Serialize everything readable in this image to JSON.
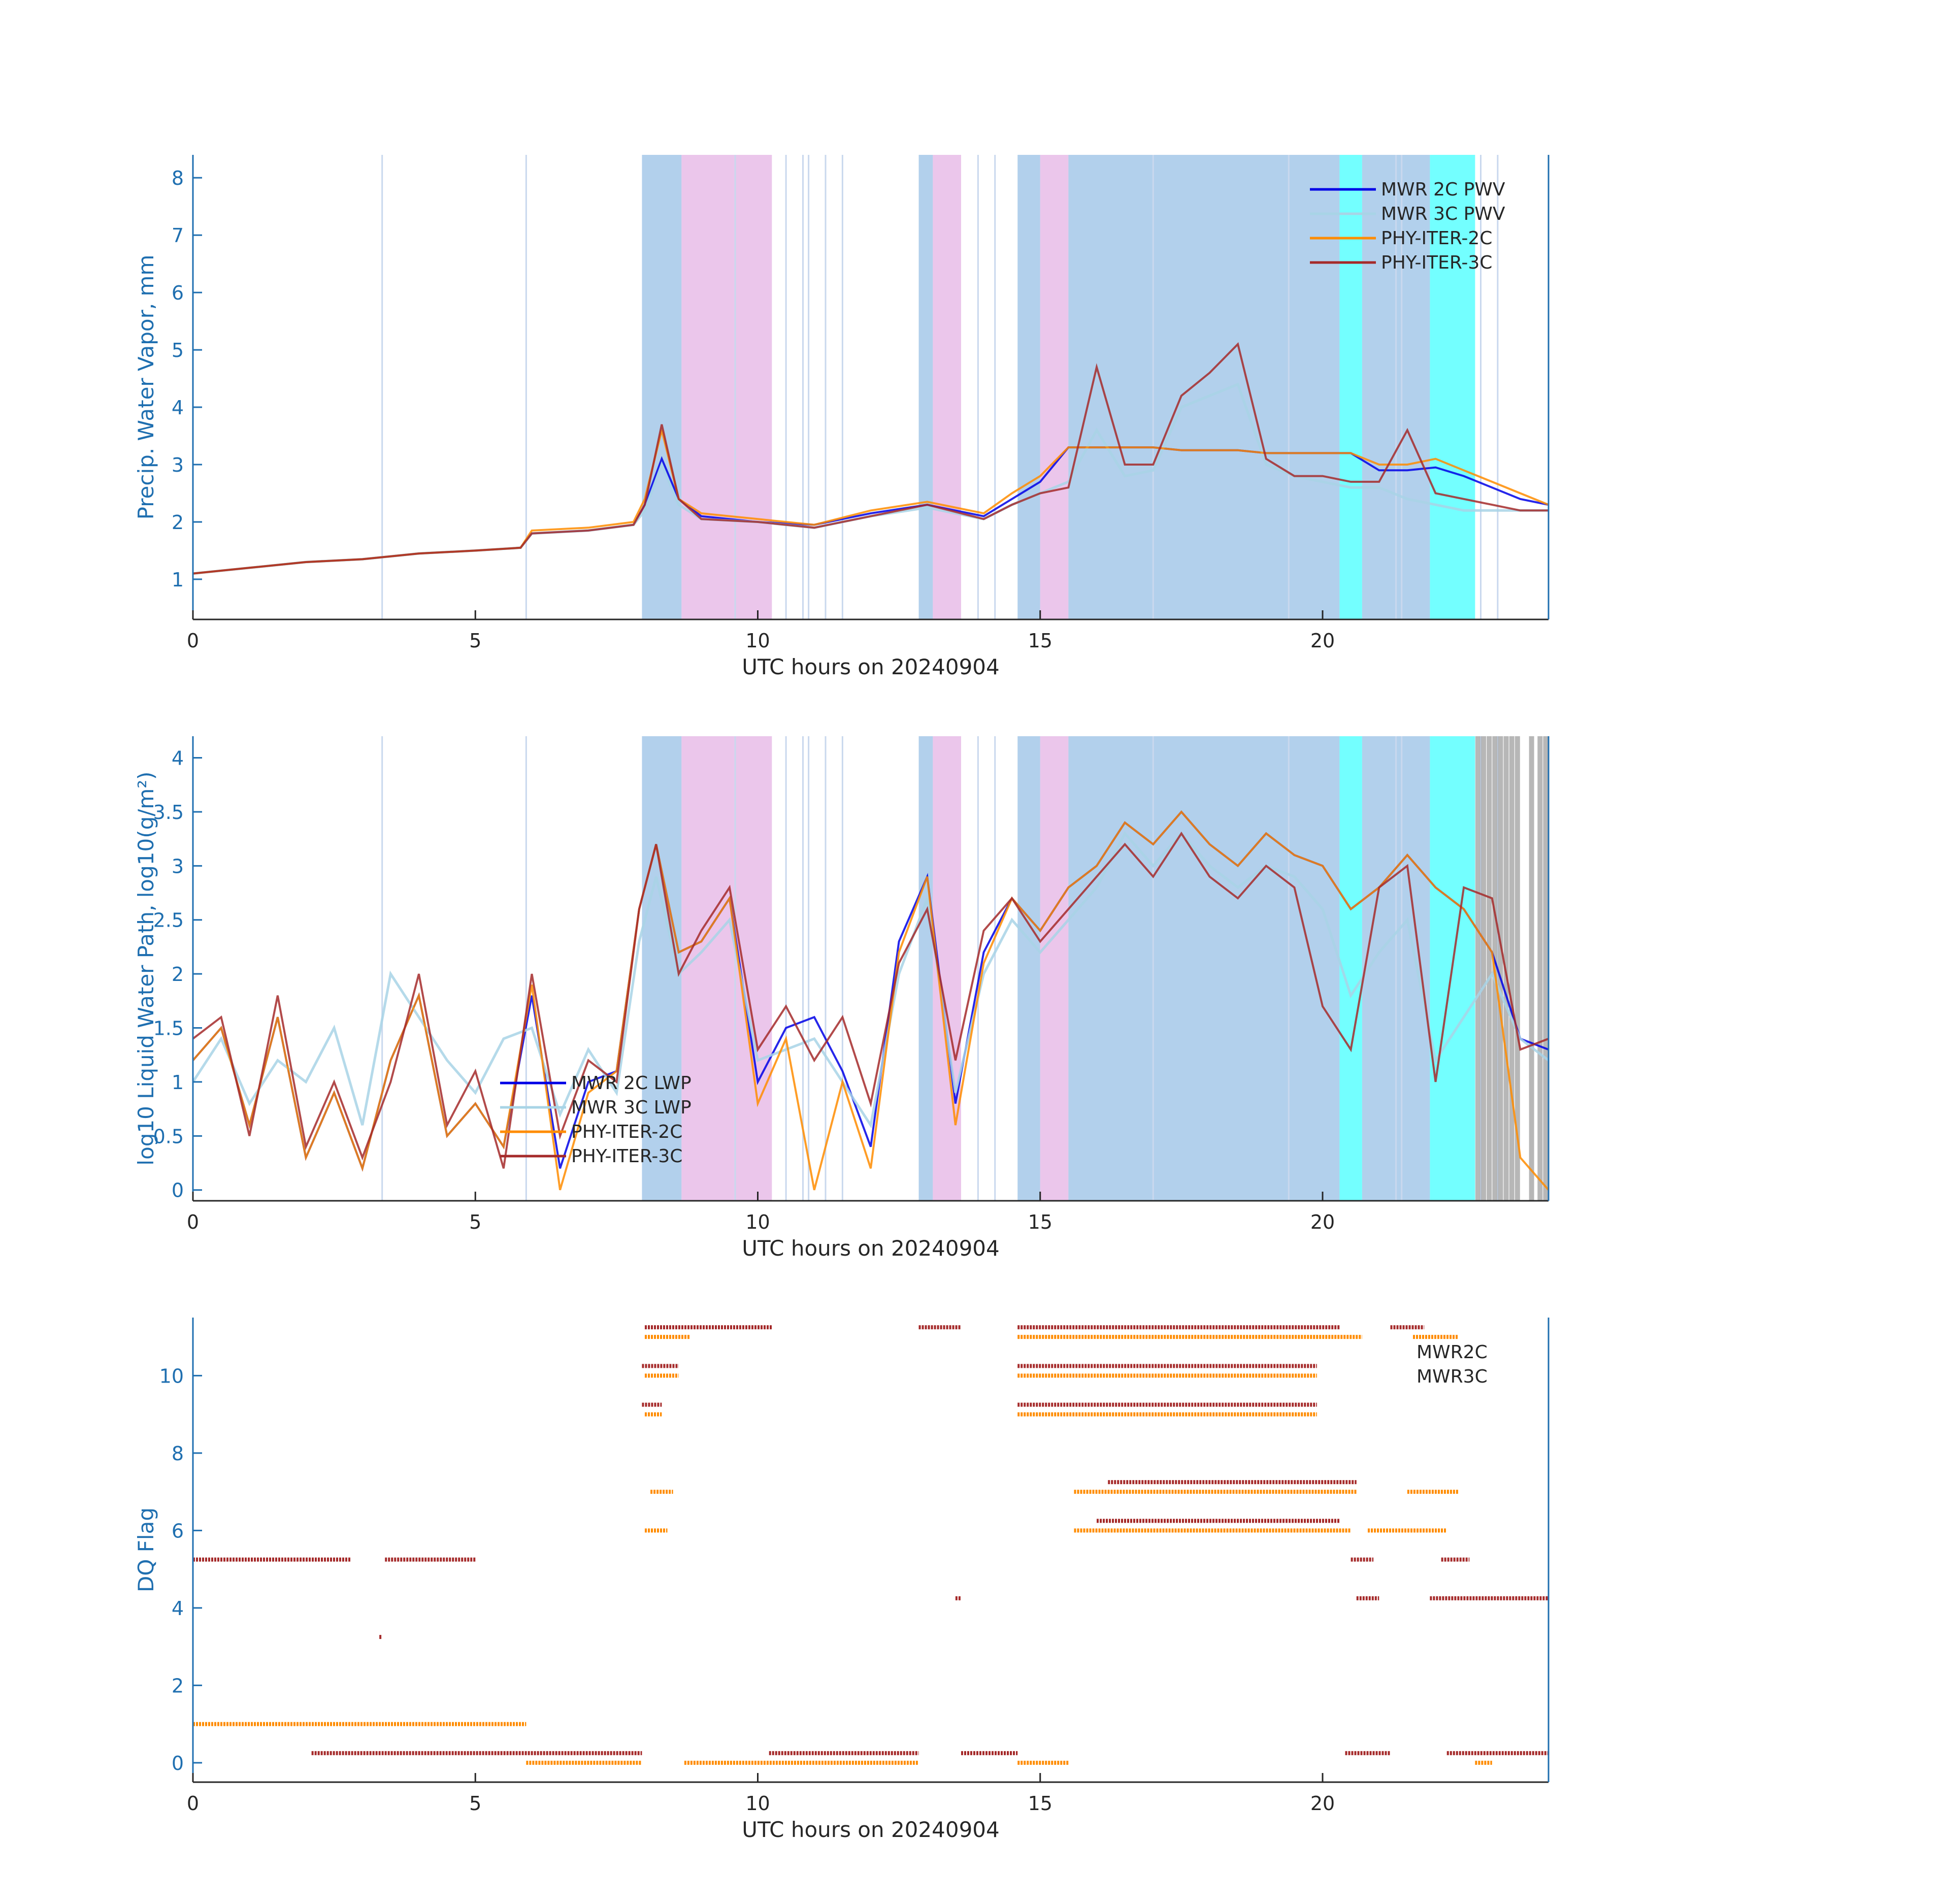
{
  "figure": {
    "xlabel": "UTC hours on 20240904"
  },
  "colors": {
    "mwr2c": "#0000e6",
    "mwr3c": "#a8d4e6",
    "phy2c": "#ff8c00",
    "phy3c": "#a52a2a",
    "shade_blue": "#7fb1e0",
    "shade_pink": "#dda0dd",
    "shade_cyan": "#00ffff",
    "shade_gray": "#999999",
    "shade_green": "#90ee90",
    "axis": "#1f6fb0"
  },
  "shading": {
    "bands": [
      {
        "x0": 7.95,
        "x1": 8.65,
        "color": "blue"
      },
      {
        "x0": 8.65,
        "x1": 10.25,
        "color": "pink"
      },
      {
        "x0": 12.85,
        "x1": 13.1,
        "color": "blue"
      },
      {
        "x0": 13.1,
        "x1": 13.6,
        "color": "pink"
      },
      {
        "x0": 14.6,
        "x1": 15.0,
        "color": "blue"
      },
      {
        "x0": 15.0,
        "x1": 15.5,
        "color": "pink"
      },
      {
        "x0": 15.5,
        "x1": 20.3,
        "color": "blue"
      },
      {
        "x0": 20.3,
        "x1": 20.7,
        "color": "cyan"
      },
      {
        "x0": 20.7,
        "x1": 21.9,
        "color": "blue"
      },
      {
        "x0": 21.9,
        "x1": 22.7,
        "color": "cyan"
      }
    ],
    "lines": [
      3.35,
      5.9,
      9.6,
      10.5,
      10.8,
      10.9,
      11.2,
      11.5,
      13.9,
      14.2,
      17.0,
      19.4,
      21.3,
      21.4,
      22.8,
      23.1
    ],
    "lwp_gray": [
      22.75,
      22.85,
      22.95,
      23.05,
      23.15,
      23.25,
      23.35,
      23.45,
      23.7,
      23.85,
      23.95
    ]
  },
  "chart_data": [
    {
      "type": "line",
      "id": "pwv",
      "ylabel": "Precip. Water Vapor, mm",
      "xlabel": "UTC hours on 20240904",
      "xlim": [
        0,
        24
      ],
      "ylim": [
        0.3,
        8.4
      ],
      "xticks": [
        "0",
        "5",
        "10",
        "15",
        "20"
      ],
      "yticks": [
        "1",
        "2",
        "3",
        "4",
        "5",
        "6",
        "7",
        "8"
      ],
      "legend": [
        "MWR 2C PWV",
        "MWR 3C PWV",
        "PHY-ITER-2C",
        "PHY-ITER-3C"
      ],
      "legend_position": "top-right",
      "x": [
        0,
        1,
        2,
        3,
        4,
        5,
        5.8,
        6,
        7,
        7.8,
        8.0,
        8.3,
        8.6,
        9,
        10,
        11,
        12,
        13,
        14,
        14.5,
        15,
        15.5,
        16,
        16.5,
        17,
        17.5,
        18,
        18.5,
        19,
        19.5,
        20,
        20.5,
        21,
        21.5,
        22,
        22.5,
        23,
        23.5,
        24
      ],
      "series": [
        {
          "name": "MWR 2C PWV",
          "values": [
            1.1,
            1.2,
            1.3,
            1.35,
            1.45,
            1.5,
            1.55,
            1.8,
            1.85,
            1.95,
            2.3,
            3.1,
            2.4,
            2.1,
            2.0,
            1.95,
            2.15,
            2.3,
            2.1,
            2.4,
            2.7,
            3.3,
            3.3,
            3.3,
            3.3,
            3.25,
            3.25,
            3.25,
            3.2,
            3.2,
            3.2,
            3.2,
            2.9,
            2.9,
            2.95,
            2.8,
            2.6,
            2.4,
            2.3
          ]
        },
        {
          "name": "MWR 3C PWV",
          "values": [
            1.1,
            1.2,
            1.3,
            1.35,
            1.45,
            1.5,
            1.55,
            1.8,
            1.85,
            1.95,
            2.2,
            3.0,
            2.3,
            2.05,
            2.0,
            1.9,
            2.1,
            2.25,
            2.05,
            2.3,
            2.5,
            2.7,
            3.6,
            2.8,
            2.9,
            4.0,
            4.2,
            4.4,
            3.0,
            2.8,
            2.7,
            2.6,
            2.6,
            2.4,
            2.3,
            2.2,
            2.2,
            2.2,
            2.2
          ]
        },
        {
          "name": "PHY-ITER-2C",
          "values": [
            1.1,
            1.2,
            1.3,
            1.35,
            1.45,
            1.5,
            1.55,
            1.85,
            1.9,
            2.0,
            2.4,
            3.6,
            2.4,
            2.15,
            2.05,
            1.95,
            2.2,
            2.35,
            2.15,
            2.5,
            2.8,
            3.3,
            3.3,
            3.3,
            3.3,
            3.25,
            3.25,
            3.25,
            3.2,
            3.2,
            3.2,
            3.2,
            3.0,
            3.0,
            3.1,
            2.9,
            2.7,
            2.5,
            2.3
          ]
        },
        {
          "name": "PHY-ITER-3C",
          "values": [
            1.1,
            1.2,
            1.3,
            1.35,
            1.45,
            1.5,
            1.55,
            1.8,
            1.85,
            1.95,
            2.3,
            3.7,
            2.4,
            2.05,
            2.0,
            1.9,
            2.1,
            2.3,
            2.05,
            2.3,
            2.5,
            2.6,
            4.7,
            3.0,
            3.0,
            4.2,
            4.6,
            5.1,
            3.1,
            2.8,
            2.8,
            2.7,
            2.7,
            3.6,
            2.5,
            2.4,
            2.3,
            2.2,
            2.2
          ]
        }
      ]
    },
    {
      "type": "line",
      "id": "lwp",
      "ylabel": "log10 Liquid Water Path, log10(g/m²)",
      "xlabel": "UTC hours on 20240904",
      "xlim": [
        0,
        24
      ],
      "ylim": [
        -0.1,
        4.2
      ],
      "xticks": [
        "0",
        "5",
        "10",
        "15",
        "20"
      ],
      "yticks": [
        "0",
        "0.5",
        "1",
        "1.5",
        "2",
        "2.5",
        "3",
        "3.5",
        "4"
      ],
      "legend": [
        "MWR 2C LWP",
        "MWR 3C LWP",
        "PHY-ITER-2C",
        "PHY-ITER-3C"
      ],
      "legend_position": "lower-left",
      "x": [
        0,
        0.5,
        1,
        1.5,
        2,
        2.5,
        3,
        3.5,
        4,
        4.5,
        5,
        5.5,
        6,
        6.5,
        7,
        7.5,
        7.9,
        8.2,
        8.6,
        9,
        9.5,
        10,
        10.5,
        11,
        11.5,
        12,
        12.5,
        13,
        13.5,
        14,
        14.5,
        15,
        15.5,
        16,
        16.5,
        17,
        17.5,
        18,
        18.5,
        19,
        19.5,
        20,
        20.5,
        21,
        21.5,
        22,
        22.5,
        23,
        23.5,
        24
      ],
      "series": [
        {
          "name": "MWR 2C LWP",
          "values": [
            1.2,
            1.5,
            0.6,
            1.6,
            0.3,
            0.9,
            0.2,
            1.2,
            1.8,
            0.5,
            0.8,
            0.4,
            1.8,
            0.2,
            1.0,
            1.1,
            2.6,
            3.2,
            2.2,
            2.3,
            2.7,
            1.0,
            1.5,
            1.6,
            1.1,
            0.4,
            2.3,
            2.9,
            0.8,
            2.2,
            2.7,
            2.4,
            2.8,
            3.0,
            3.4,
            3.2,
            3.5,
            3.2,
            3.0,
            3.3,
            3.1,
            3.0,
            2.6,
            2.8,
            3.1,
            2.8,
            2.6,
            2.2,
            1.4,
            1.3
          ]
        },
        {
          "name": "MWR 3C LWP",
          "values": [
            1.0,
            1.4,
            0.8,
            1.2,
            1.0,
            1.5,
            0.6,
            2.0,
            1.6,
            1.2,
            0.9,
            1.4,
            1.5,
            0.7,
            1.3,
            0.9,
            2.3,
            2.9,
            2.0,
            2.2,
            2.5,
            1.2,
            1.3,
            1.4,
            1.0,
            0.6,
            2.0,
            2.7,
            0.9,
            2.0,
            2.5,
            2.2,
            2.5,
            2.8,
            3.3,
            3.0,
            3.3,
            3.0,
            2.8,
            3.0,
            2.9,
            2.6,
            1.8,
            2.2,
            2.5,
            1.2,
            1.6,
            2.0,
            1.4,
            1.2
          ]
        },
        {
          "name": "PHY-ITER-2C",
          "values": [
            1.2,
            1.5,
            0.6,
            1.6,
            0.3,
            0.9,
            0.2,
            1.2,
            1.8,
            0.5,
            0.8,
            0.4,
            1.9,
            0.0,
            0.9,
            1.1,
            2.6,
            3.2,
            2.2,
            2.3,
            2.7,
            0.8,
            1.4,
            0.0,
            1.0,
            0.2,
            2.2,
            2.9,
            0.6,
            2.1,
            2.7,
            2.4,
            2.8,
            3.0,
            3.4,
            3.2,
            3.5,
            3.2,
            3.0,
            3.3,
            3.1,
            3.0,
            2.6,
            2.8,
            3.1,
            2.8,
            2.6,
            2.2,
            0.3,
            0.0
          ]
        },
        {
          "name": "PHY-ITER-3C",
          "values": [
            1.4,
            1.6,
            0.5,
            1.8,
            0.4,
            1.0,
            0.3,
            1.0,
            2.0,
            0.6,
            1.1,
            0.2,
            2.0,
            0.5,
            1.2,
            1.0,
            2.6,
            3.2,
            2.0,
            2.4,
            2.8,
            1.3,
            1.7,
            1.2,
            1.6,
            0.8,
            2.1,
            2.6,
            1.2,
            2.4,
            2.7,
            2.3,
            2.6,
            2.9,
            3.2,
            2.9,
            3.3,
            2.9,
            2.7,
            3.0,
            2.8,
            1.7,
            1.3,
            2.8,
            3.0,
            1.0,
            2.8,
            2.7,
            1.3,
            1.4
          ]
        }
      ]
    },
    {
      "type": "scatter",
      "id": "dq",
      "ylabel": "DQ Flag",
      "xlabel": "UTC hours on 20240904",
      "xlim": [
        0,
        24
      ],
      "ylim": [
        -0.5,
        11.5
      ],
      "xticks": [
        "0",
        "5",
        "10",
        "15",
        "20"
      ],
      "yticks": [
        "0",
        "2",
        "4",
        "6",
        "8",
        "10"
      ],
      "legend": [
        "MWR2C",
        "MWR3C"
      ],
      "legend_position": "top-right",
      "series": [
        {
          "name": "MWR2C",
          "segments": [
            {
              "y": 1,
              "x0": 0,
              "x1": 5.9
            },
            {
              "y": 0,
              "x0": 5.9,
              "x1": 7.95
            },
            {
              "y": 0,
              "x0": 8.7,
              "x1": 12.85
            },
            {
              "y": 0,
              "x0": 14.6,
              "x1": 15.5
            },
            {
              "y": 0,
              "x0": 22.7,
              "x1": 23.0
            },
            {
              "y": 6,
              "x0": 8.0,
              "x1": 8.4
            },
            {
              "y": 6,
              "x0": 15.6,
              "x1": 20.5
            },
            {
              "y": 6,
              "x0": 20.8,
              "x1": 22.2
            },
            {
              "y": 7,
              "x0": 8.1,
              "x1": 8.5
            },
            {
              "y": 7,
              "x0": 15.6,
              "x1": 20.6
            },
            {
              "y": 7,
              "x0": 21.5,
              "x1": 22.4
            },
            {
              "y": 9,
              "x0": 8.0,
              "x1": 8.3
            },
            {
              "y": 9,
              "x0": 14.6,
              "x1": 19.9
            },
            {
              "y": 10,
              "x0": 8.0,
              "x1": 8.6
            },
            {
              "y": 10,
              "x0": 14.6,
              "x1": 19.9
            },
            {
              "y": 11,
              "x0": 8.0,
              "x1": 8.8
            },
            {
              "y": 11,
              "x0": 14.6,
              "x1": 20.7
            },
            {
              "y": 11,
              "x0": 21.6,
              "x1": 22.4
            }
          ]
        },
        {
          "name": "MWR3C",
          "segments": [
            {
              "y": 5,
              "x0": 0,
              "x1": 2.8
            },
            {
              "y": 5,
              "x0": 3.4,
              "x1": 5.0
            },
            {
              "y": 3,
              "x0": 3.3,
              "x1": 3.35
            },
            {
              "y": 0,
              "x0": 2.1,
              "x1": 7.95
            },
            {
              "y": 0,
              "x0": 10.2,
              "x1": 12.85
            },
            {
              "y": 0,
              "x0": 13.6,
              "x1": 14.6
            },
            {
              "y": 0,
              "x0": 20.4,
              "x1": 21.2
            },
            {
              "y": 0,
              "x0": 22.2,
              "x1": 24
            },
            {
              "y": 4,
              "x0": 13.5,
              "x1": 13.6
            },
            {
              "y": 4,
              "x0": 20.6,
              "x1": 21.0
            },
            {
              "y": 4,
              "x0": 21.9,
              "x1": 24
            },
            {
              "y": 5,
              "x0": 20.5,
              "x1": 20.9
            },
            {
              "y": 5,
              "x0": 22.1,
              "x1": 22.6
            },
            {
              "y": 6,
              "x0": 16.0,
              "x1": 20.3
            },
            {
              "y": 7,
              "x0": 16.2,
              "x1": 20.6
            },
            {
              "y": 9,
              "x0": 7.95,
              "x1": 8.3
            },
            {
              "y": 9,
              "x0": 14.6,
              "x1": 19.9
            },
            {
              "y": 10,
              "x0": 7.95,
              "x1": 8.6
            },
            {
              "y": 10,
              "x0": 14.6,
              "x1": 19.9
            },
            {
              "y": 11,
              "x0": 8.0,
              "x1": 10.25
            },
            {
              "y": 11,
              "x0": 12.85,
              "x1": 13.6
            },
            {
              "y": 11,
              "x0": 14.6,
              "x1": 20.3
            },
            {
              "y": 11,
              "x0": 21.2,
              "x1": 21.8
            }
          ]
        }
      ]
    }
  ]
}
